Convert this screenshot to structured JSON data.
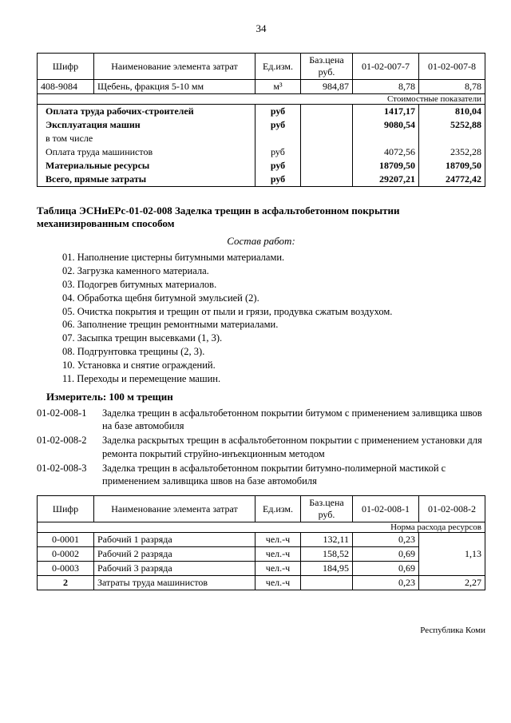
{
  "pageNumber": "34",
  "table1": {
    "headers": [
      "Шифр",
      "Наименование элемента затрат",
      "Ед.изм.",
      "Баз.цена руб.",
      "01-02-007-7",
      "01-02-007-8"
    ],
    "row": {
      "code": "408-9084",
      "name": "Щебень, фракция 5-10 мм",
      "unit": "м³",
      "price": "984,87",
      "v1": "8,78",
      "v2": "8,78"
    },
    "subheader": "Стоимостные показатели",
    "costs": [
      {
        "label": "Оплата труда рабочих-строителей",
        "unit": "руб",
        "v1": "1417,17",
        "v2": "810,04",
        "bold": true
      },
      {
        "label": "Эксплуатация машин",
        "unit": "руб",
        "v1": "9080,54",
        "v2": "5252,88",
        "bold": true
      },
      {
        "label": "в том числе",
        "unit": "",
        "v1": "",
        "v2": "",
        "bold": false
      },
      {
        "label": "Оплата труда машинистов",
        "unit": "руб",
        "v1": "4072,56",
        "v2": "2352,28",
        "bold": false
      },
      {
        "label": "Материальные ресурсы",
        "unit": "руб",
        "v1": "18709,50",
        "v2": "18709,50",
        "bold": true
      },
      {
        "label": "Всего, прямые затраты",
        "unit": "руб",
        "v1": "29207,21",
        "v2": "24772,42",
        "bold": true
      }
    ]
  },
  "sectionTitle1": "Таблица  ЭСНиЕРс-01-02-008  Заделка трещин в асфальтобетонном покрытии",
  "sectionTitle2": "механизированным способом",
  "workTitle": "Состав работ:",
  "works": [
    "01. Наполнение цистерны битумными материалами.",
    "02. Загрузка каменного материала.",
    "03. Подогрев битумных материалов.",
    "04. Обработка щебня битумной эмульсией (2).",
    "05. Очистка покрытия и трещин от пыли и грязи, продувка сжатым воздухом.",
    "06. Заполнение трещин ремонтными материалами.",
    "07. Засыпка трещин высевками (1, 3).",
    "08. Подгрунтовка трещины (2, 3).",
    "10. Установка и снятие ограждений.",
    "11. Переходы и перемещение машин."
  ],
  "measure": "Измеритель: 100 м трещин",
  "items": [
    {
      "code": "01-02-008-1",
      "text": "Заделка трещин в асфальтобетонном покрытии битумом с применением заливщика швов на базе автомобиля"
    },
    {
      "code": "01-02-008-2",
      "text": "Заделка раскрытых трещин в асфальтобетонном покрытии с применением установки для ремонта покрытий струйно-инъекционным методом"
    },
    {
      "code": "01-02-008-3",
      "text": "Заделка трещин в асфальтобетонном покрытии битумно-полимерной мастикой с применением заливщика швов на базе автомобиля"
    }
  ],
  "table2": {
    "headers": [
      "Шифр",
      "Наименование элемента затрат",
      "Ед.изм.",
      "Баз.цена руб.",
      "01-02-008-1",
      "01-02-008-2"
    ],
    "subheader": "Норма расхода ресурсов",
    "rows": [
      {
        "code": "0-0001",
        "name": "Рабочий 1 разряда",
        "unit": "чел.-ч",
        "price": "132,11",
        "v1": "0,23",
        "v2": ""
      },
      {
        "code": "0-0002",
        "name": "Рабочий 2 разряда",
        "unit": "чел.-ч",
        "price": "158,52",
        "v1": "0,69",
        "v2": "1,13"
      },
      {
        "code": "0-0003",
        "name": "Рабочий 3 разряда",
        "unit": "чел.-ч",
        "price": "184,95",
        "v1": "0,69",
        "v2": ""
      }
    ],
    "last": {
      "code": "2",
      "name": "Затраты труда машинистов",
      "unit": "чел.-ч",
      "price": "",
      "v1": "0,23",
      "v2": "2,27"
    }
  },
  "footer": "Республика Коми"
}
